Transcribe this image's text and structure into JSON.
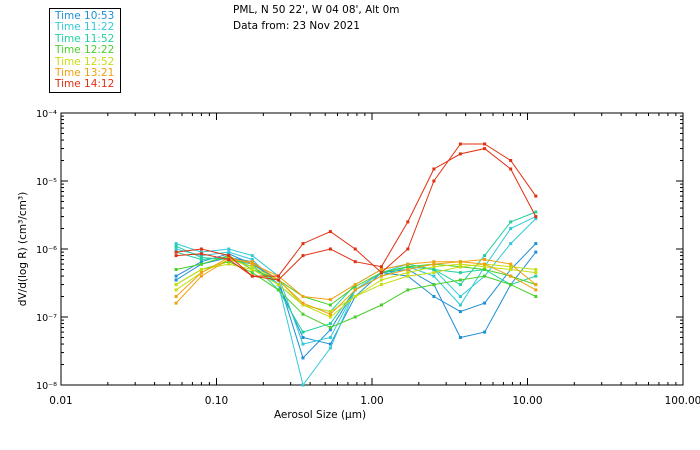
{
  "header": {
    "location": "PML, N 50 22', W 04 08', Alt 0m",
    "date_line": "Data from: 23 Nov 2021"
  },
  "legend": [
    {
      "label": "Time 10:53",
      "color": "#1f8fd6"
    },
    {
      "label": "Time 11:22",
      "color": "#33c9d9"
    },
    {
      "label": "Time 11:52",
      "color": "#20d0a0"
    },
    {
      "label": "Time 12:22",
      "color": "#4ad02a"
    },
    {
      "label": "Time 12:52",
      "color": "#c8dc10"
    },
    {
      "label": "Time 13:21",
      "color": "#f0a010"
    },
    {
      "label": "Time 14:12",
      "color": "#e03010"
    }
  ],
  "chart_data": {
    "type": "line",
    "xscale": "log",
    "yscale": "log",
    "xlim": [
      0.01,
      100
    ],
    "ylim": [
      1e-08,
      0.0001
    ],
    "xticks": [
      "0.01",
      "0.10",
      "1.00",
      "10.00",
      "100.00"
    ],
    "yticks": [
      "10⁻⁸",
      "10⁻⁷",
      "10⁻⁶",
      "10⁻⁵",
      "10⁻⁴"
    ],
    "xlabel": "Aerosol Size (µm)",
    "ylabel": "dV/d(log R) (cm³/cm³)",
    "x": [
      0.055,
      0.08,
      0.12,
      0.17,
      0.25,
      0.36,
      0.54,
      0.78,
      1.15,
      1.7,
      2.5,
      3.7,
      5.3,
      7.8,
      11.3
    ],
    "series": [
      {
        "color": "#1f8fd6",
        "values": [
          4e-07,
          6.5e-07,
          8.5e-07,
          6e-07,
          3.5e-07,
          2.5e-08,
          6.5e-08,
          2.5e-07,
          4.5e-07,
          4e-07,
          2e-07,
          1.2e-07,
          1.6e-07,
          5e-07,
          1.2e-06
        ]
      },
      {
        "color": "#1f8fd6",
        "values": [
          3.5e-07,
          6e-07,
          7.5e-07,
          6.5e-07,
          3e-07,
          5e-08,
          4e-08,
          2e-07,
          4.5e-07,
          5e-07,
          3e-07,
          5e-08,
          6e-08,
          3e-07,
          9e-07
        ]
      },
      {
        "color": "#33c9d9",
        "values": [
          1e-06,
          8e-07,
          9e-07,
          7e-07,
          3e-07,
          1e-08,
          3.5e-08,
          2.5e-07,
          4.5e-07,
          6e-07,
          5e-07,
          2e-07,
          4e-07,
          1.2e-06,
          2.8e-06
        ]
      },
      {
        "color": "#33c9d9",
        "values": [
          1.2e-06,
          9e-07,
          1e-06,
          8e-07,
          4e-07,
          4e-08,
          5e-08,
          2.5e-07,
          4.5e-07,
          5.5e-07,
          4e-07,
          1.5e-07,
          5.5e-07,
          2e-06,
          3e-06
        ]
      },
      {
        "color": "#20d0a0",
        "values": [
          1.1e-06,
          7.5e-07,
          7e-07,
          6e-07,
          2.5e-07,
          6e-08,
          8e-08,
          2.5e-07,
          4e-07,
          5.5e-07,
          5e-07,
          3e-07,
          8e-07,
          2.5e-06,
          3.5e-06
        ]
      },
      {
        "color": "#20d0a0",
        "values": [
          9e-07,
          7e-07,
          7.5e-07,
          5.5e-07,
          3e-07,
          1.5e-07,
          1.2e-07,
          3e-07,
          5e-07,
          6e-07,
          5e-07,
          4.5e-07,
          5e-07,
          3e-07,
          4e-07
        ]
      },
      {
        "color": "#4ad02a",
        "values": [
          5e-07,
          6e-07,
          8e-07,
          5e-07,
          3.5e-07,
          2e-07,
          1.5e-07,
          2.8e-07,
          4.5e-07,
          5.5e-07,
          6e-07,
          5.5e-07,
          5e-07,
          4e-07,
          3e-07
        ]
      },
      {
        "color": "#4ad02a",
        "values": [
          3e-07,
          5e-07,
          6.5e-07,
          4.5e-07,
          2.5e-07,
          1.1e-07,
          7e-08,
          1e-07,
          1.5e-07,
          2.5e-07,
          3e-07,
          3.5e-07,
          4e-07,
          3e-07,
          2e-07
        ]
      },
      {
        "color": "#c8dc10",
        "values": [
          2.5e-07,
          4.5e-07,
          7e-07,
          5.5e-07,
          3.5e-07,
          1.5e-07,
          1.2e-07,
          2e-07,
          3.5e-07,
          4.5e-07,
          5.5e-07,
          6e-07,
          5.5e-07,
          5e-07,
          4.5e-07
        ]
      },
      {
        "color": "#c8dc10",
        "values": [
          3e-07,
          5e-07,
          6e-07,
          5e-07,
          3e-07,
          1.5e-07,
          1e-07,
          2e-07,
          3e-07,
          4e-07,
          4.5e-07,
          5.5e-07,
          6e-07,
          5.5e-07,
          5e-07
        ]
      },
      {
        "color": "#f0a010",
        "values": [
          2e-07,
          4.5e-07,
          7.5e-07,
          6e-07,
          4e-07,
          2e-07,
          1.8e-07,
          3e-07,
          5e-07,
          6e-07,
          6.5e-07,
          6.5e-07,
          7e-07,
          6e-07,
          3e-07
        ]
      },
      {
        "color": "#f0a010",
        "values": [
          1.6e-07,
          4e-07,
          7e-07,
          6.5e-07,
          3.5e-07,
          1.6e-07,
          1.1e-07,
          2.5e-07,
          4e-07,
          5e-07,
          6e-07,
          6.5e-07,
          6e-07,
          4e-07,
          2.5e-07
        ]
      },
      {
        "color": "#e03010",
        "values": [
          9e-07,
          1e-06,
          8e-07,
          4e-07,
          4e-07,
          1.2e-06,
          1.8e-06,
          1e-06,
          4.5e-07,
          1e-06,
          1e-05,
          3.5e-05,
          3.5e-05,
          2e-05,
          6e-06
        ]
      },
      {
        "color": "#e03010",
        "values": [
          8e-07,
          8.5e-07,
          7e-07,
          4e-07,
          3.5e-07,
          8e-07,
          1e-06,
          6.5e-07,
          5.5e-07,
          2.5e-06,
          1.5e-05,
          2.5e-05,
          3e-05,
          1.5e-05,
          3e-06
        ]
      }
    ]
  }
}
